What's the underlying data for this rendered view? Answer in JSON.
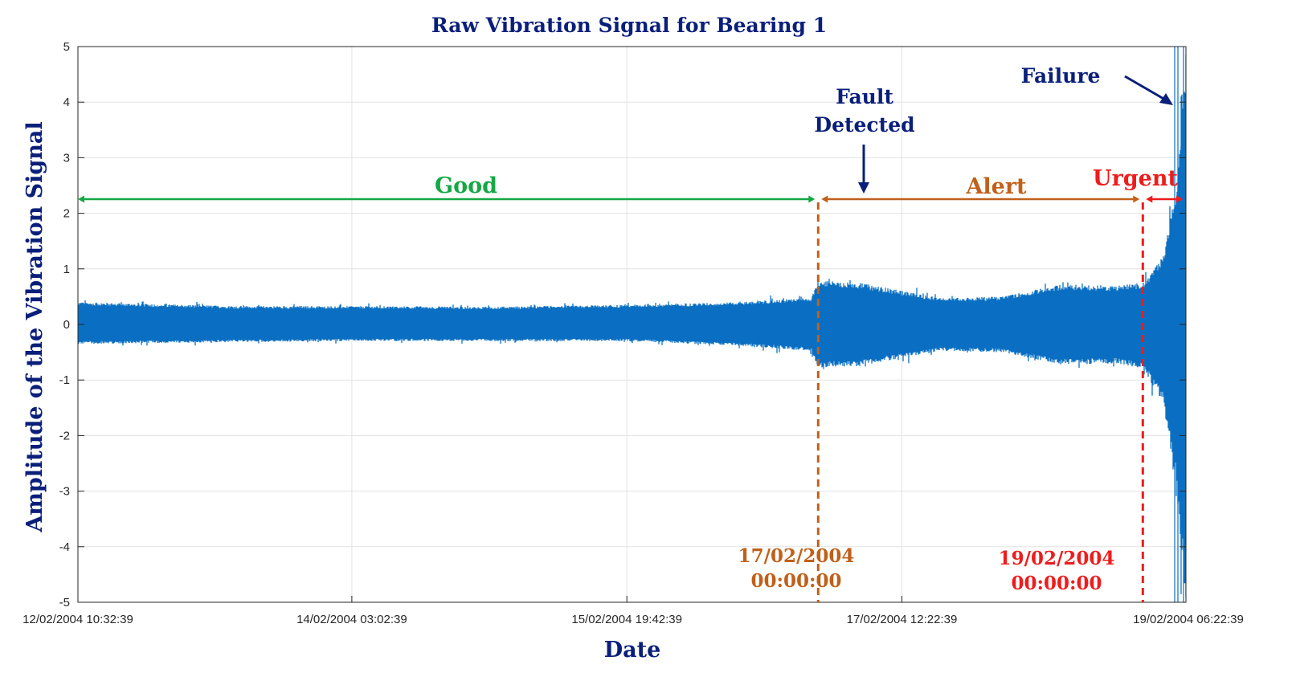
{
  "chart_data": {
    "type": "line",
    "title": "Raw Vibration Signal for Bearing 1",
    "xlabel": "Date",
    "ylabel": "Amplitude of the Vibration Signal",
    "ylim": [
      -5,
      5
    ],
    "yticks": [
      5,
      4,
      3,
      2,
      1,
      0,
      -1,
      -2,
      -3,
      -4,
      -5
    ],
    "xlim": [
      "12/02/2004 10:32:39",
      "19/02/2004 06:22:39"
    ],
    "xticks": [
      "12/02/2004 10:32:39",
      "14/02/2004 03:02:39",
      "15/02/2004 19:42:39",
      "17/02/2004 12:22:39",
      "19/02/2004 06:22:39"
    ],
    "grid": true,
    "series": [
      {
        "color": "#0a6fc2",
        "envelope": [
          {
            "t": "12/02/2004 10:32:39",
            "upper": 0.4,
            "lower": -0.35
          },
          {
            "t": "13/02/2004 10:00:00",
            "upper": 0.33,
            "lower": -0.32
          },
          {
            "t": "14/02/2004 03:02:39",
            "upper": 0.33,
            "lower": -0.3
          },
          {
            "t": "15/02/2004 00:00:00",
            "upper": 0.32,
            "lower": -0.3
          },
          {
            "t": "15/02/2004 19:42:39",
            "upper": 0.35,
            "lower": -0.3
          },
          {
            "t": "16/02/2004 12:00:00",
            "upper": 0.4,
            "lower": -0.38
          },
          {
            "t": "16/02/2004 23:00:00",
            "upper": 0.48,
            "lower": -0.48
          },
          {
            "t": "17/02/2004 00:00:00",
            "upper": 0.8,
            "lower": -0.78
          },
          {
            "t": "17/02/2004 06:00:00",
            "upper": 0.75,
            "lower": -0.75
          },
          {
            "t": "17/02/2004 18:00:00",
            "upper": 0.48,
            "lower": -0.48
          },
          {
            "t": "18/02/2004 03:00:00",
            "upper": 0.5,
            "lower": -0.5
          },
          {
            "t": "18/02/2004 12:00:00",
            "upper": 0.72,
            "lower": -0.72
          },
          {
            "t": "18/02/2004 20:00:00",
            "upper": 0.7,
            "lower": -0.7
          },
          {
            "t": "19/02/2004 00:00:00",
            "upper": 0.75,
            "lower": -0.8
          },
          {
            "t": "19/02/2004 03:00:00",
            "upper": 1.2,
            "lower": -1.4
          },
          {
            "t": "19/02/2004 05:00:00",
            "upper": 2.5,
            "lower": -3.0
          },
          {
            "t": "19/02/2004 06:22:39",
            "upper": 5.0,
            "lower": -5.0
          }
        ]
      }
    ],
    "regions": [
      {
        "label": "Good",
        "color": "#15a843",
        "start": "12/02/2004 10:32:39",
        "end": "17/02/2004 00:00:00",
        "y": 2.2
      },
      {
        "label": "Alert",
        "color": "#c0601a",
        "start": "17/02/2004 00:00:00",
        "end": "19/02/2004 00:00:00",
        "y": 2.2
      },
      {
        "label": "Urgent",
        "color": "#ee1c1c",
        "start": "19/02/2004 00:00:00",
        "end": "19/02/2004 06:22:39",
        "y": 2.2
      }
    ],
    "markers": [
      {
        "line1": "17/02/2004",
        "line2": "00:00:00",
        "color": "#c0601a",
        "t": "17/02/2004 00:00:00"
      },
      {
        "line1": "19/02/2004",
        "line2": "00:00:00",
        "color": "#ee1c1c",
        "t": "19/02/2004 00:00:00"
      }
    ],
    "annotations": [
      {
        "line1": "Fault",
        "line2": "Detected",
        "color": "#0a1f7a"
      },
      {
        "line1": "Failure",
        "color": "#0a1f7a"
      }
    ],
    "title_color": "#0a1f7a"
  }
}
